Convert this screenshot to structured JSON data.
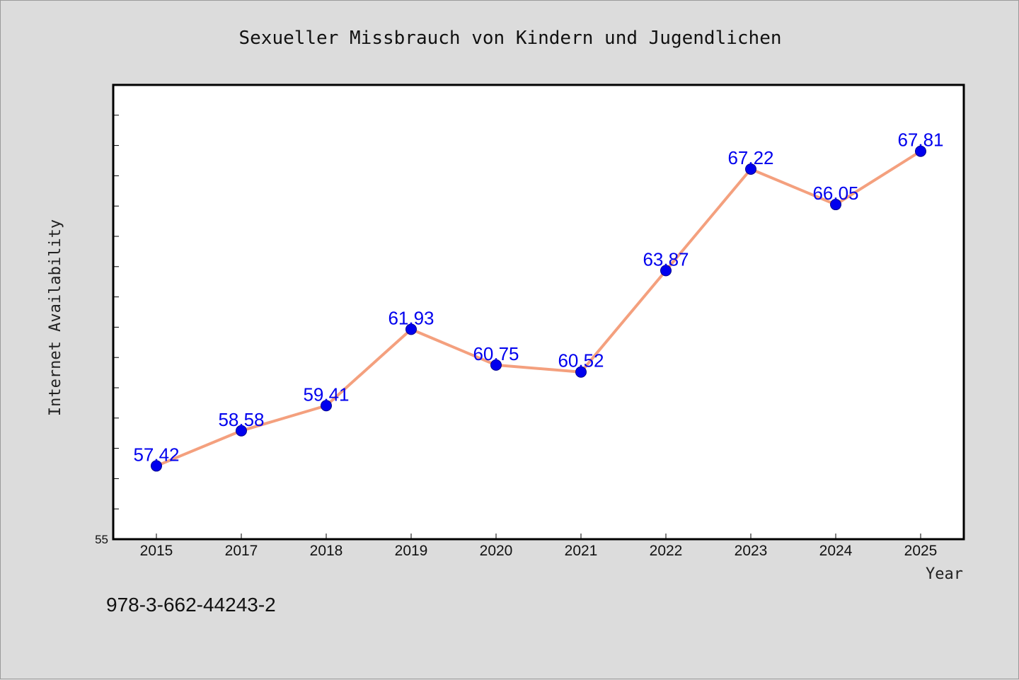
{
  "chart_data": {
    "type": "line",
    "title": "Sexueller Missbrauch von Kindern und Jugendlichen",
    "xlabel": "Year",
    "ylabel": "Internet Availability",
    "categories": [
      "2015",
      "2017",
      "2018",
      "2019",
      "2020",
      "2021",
      "2022",
      "2023",
      "2024",
      "2025"
    ],
    "series": [
      {
        "values": [
          57.42,
          58.58,
          59.41,
          61.93,
          60.75,
          60.52,
          63.87,
          67.22,
          66.05,
          67.81
        ],
        "labels": [
          "57.42",
          "58.58",
          "59.41",
          "61.93",
          "60.75",
          "60.52",
          "63.87",
          "67.22",
          "66.05",
          "67.81"
        ],
        "line_color": "#f4a07e",
        "marker_color": "#0000ee"
      }
    ],
    "ylim": [
      55,
      70
    ],
    "y_tick_labels": [
      "55"
    ],
    "grid": false,
    "legend": "none"
  },
  "footer": {
    "isbn": "978-3-662-44243-2"
  },
  "colors": {
    "background": "#dcdcdc",
    "plot_background": "#ffffff",
    "label": "#0000ee"
  }
}
